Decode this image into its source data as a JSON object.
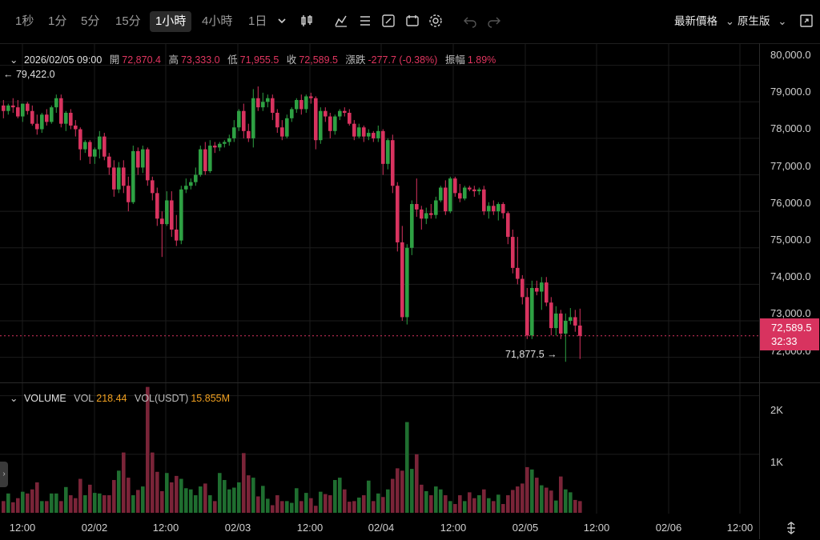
{
  "toolbar": {
    "timeframes": [
      "1秒",
      "1分",
      "5分",
      "15分",
      "1小時",
      "4小時",
      "1日"
    ],
    "active_timeframe": "1小時",
    "price_type": "最新價格",
    "view_mode": "原生版"
  },
  "legend": {
    "datetime": "2026/02/05 09:00",
    "open_label": "開",
    "open": "72,870.4",
    "high_label": "高",
    "high": "73,333.0",
    "low_label": "低",
    "low": "71,955.5",
    "close_label": "收",
    "close": "72,589.5",
    "change_label": "漲跌",
    "change": "-277.7 (-0.38%)",
    "amplitude_label": "振幅",
    "amplitude": "1.89%"
  },
  "annotations": {
    "high_marker": "← 79,422.0",
    "low_marker": "71,877.5 →"
  },
  "last_price": {
    "price": "72,589.5",
    "countdown": "32:33"
  },
  "volume_legend": {
    "title": "VOLUME",
    "vol_label": "VOL",
    "vol": "218.44",
    "vol_usdt_label": "VOL(USDT)",
    "vol_usdt": "15.855M"
  },
  "y_axis_labels": [
    "80,000.0",
    "79,000.0",
    "78,000.0",
    "77,000.0",
    "76,000.0",
    "75,000.0",
    "74,000.0",
    "73,000.0",
    "72,000.0"
  ],
  "volume_axis_labels": [
    "2K",
    "1K"
  ],
  "x_axis_labels": [
    "12:00",
    "02/02",
    "12:00",
    "02/03",
    "12:00",
    "02/04",
    "12:00",
    "02/05",
    "12:00",
    "02/06",
    "12:00"
  ],
  "colors": {
    "up": "#2ea043",
    "down": "#d8335f",
    "background": "#000000",
    "grid": "#1c1c1c"
  },
  "chart_data": {
    "type": "candlestick",
    "price_range": [
      71400,
      80300
    ],
    "volume_range": [
      0,
      2200
    ],
    "candles": [
      {
        "o": 78900,
        "h": 79050,
        "l": 78550,
        "c": 78750
      },
      {
        "o": 78750,
        "h": 78950,
        "l": 78650,
        "c": 78900
      },
      {
        "o": 78900,
        "h": 79100,
        "l": 78700,
        "c": 78850
      },
      {
        "o": 78850,
        "h": 79050,
        "l": 78550,
        "c": 78600
      },
      {
        "o": 78600,
        "h": 78950,
        "l": 78450,
        "c": 78950
      },
      {
        "o": 78950,
        "h": 79000,
        "l": 78650,
        "c": 78750
      },
      {
        "o": 78750,
        "h": 78900,
        "l": 78350,
        "c": 78400
      },
      {
        "o": 78400,
        "h": 78650,
        "l": 78100,
        "c": 78250
      },
      {
        "o": 78250,
        "h": 78700,
        "l": 78150,
        "c": 78650
      },
      {
        "o": 78650,
        "h": 78800,
        "l": 78350,
        "c": 78450
      },
      {
        "o": 78450,
        "h": 78900,
        "l": 78400,
        "c": 78850
      },
      {
        "o": 78850,
        "h": 79200,
        "l": 78700,
        "c": 79100
      },
      {
        "o": 79100,
        "h": 79200,
        "l": 78300,
        "c": 78400
      },
      {
        "o": 78400,
        "h": 78750,
        "l": 78200,
        "c": 78700
      },
      {
        "o": 78700,
        "h": 78800,
        "l": 78250,
        "c": 78350
      },
      {
        "o": 78350,
        "h": 78500,
        "l": 78050,
        "c": 78250
      },
      {
        "o": 78250,
        "h": 78300,
        "l": 77400,
        "c": 77700
      },
      {
        "o": 77700,
        "h": 77950,
        "l": 77600,
        "c": 77900
      },
      {
        "o": 77900,
        "h": 77950,
        "l": 77300,
        "c": 77500
      },
      {
        "o": 77500,
        "h": 77750,
        "l": 77300,
        "c": 77700
      },
      {
        "o": 77700,
        "h": 78200,
        "l": 77450,
        "c": 78050
      },
      {
        "o": 78050,
        "h": 78150,
        "l": 77400,
        "c": 77500
      },
      {
        "o": 77500,
        "h": 77600,
        "l": 77000,
        "c": 77200
      },
      {
        "o": 77200,
        "h": 77400,
        "l": 76400,
        "c": 76600
      },
      {
        "o": 76600,
        "h": 77350,
        "l": 76500,
        "c": 77200
      },
      {
        "o": 77200,
        "h": 77400,
        "l": 76500,
        "c": 76700
      },
      {
        "o": 76700,
        "h": 76950,
        "l": 76000,
        "c": 76250
      },
      {
        "o": 76250,
        "h": 77800,
        "l": 76200,
        "c": 77650
      },
      {
        "o": 77650,
        "h": 77750,
        "l": 77000,
        "c": 77200
      },
      {
        "o": 77200,
        "h": 77800,
        "l": 77050,
        "c": 77700
      },
      {
        "o": 77700,
        "h": 77750,
        "l": 76700,
        "c": 76850
      },
      {
        "o": 76850,
        "h": 76950,
        "l": 76300,
        "c": 76500
      },
      {
        "o": 76500,
        "h": 76650,
        "l": 75600,
        "c": 75800
      },
      {
        "o": 75800,
        "h": 76000,
        "l": 74750,
        "c": 75650
      },
      {
        "o": 75650,
        "h": 76550,
        "l": 75600,
        "c": 76300
      },
      {
        "o": 76300,
        "h": 76550,
        "l": 75300,
        "c": 75500
      },
      {
        "o": 75500,
        "h": 75900,
        "l": 75050,
        "c": 75200
      },
      {
        "o": 75200,
        "h": 76700,
        "l": 75100,
        "c": 76600
      },
      {
        "o": 76600,
        "h": 76900,
        "l": 76500,
        "c": 76700
      },
      {
        "o": 76700,
        "h": 76900,
        "l": 76600,
        "c": 76800
      },
      {
        "o": 76800,
        "h": 77200,
        "l": 76700,
        "c": 77000
      },
      {
        "o": 77000,
        "h": 77800,
        "l": 76950,
        "c": 77700
      },
      {
        "o": 77700,
        "h": 77900,
        "l": 77000,
        "c": 77100
      },
      {
        "o": 77100,
        "h": 77950,
        "l": 77050,
        "c": 77800
      },
      {
        "o": 77800,
        "h": 77900,
        "l": 77600,
        "c": 77750
      },
      {
        "o": 77750,
        "h": 77900,
        "l": 77650,
        "c": 77850
      },
      {
        "o": 77850,
        "h": 77950,
        "l": 77750,
        "c": 77900
      },
      {
        "o": 77900,
        "h": 78100,
        "l": 77800,
        "c": 78000
      },
      {
        "o": 78000,
        "h": 78500,
        "l": 77900,
        "c": 78300
      },
      {
        "o": 78300,
        "h": 78800,
        "l": 78200,
        "c": 78750
      },
      {
        "o": 78750,
        "h": 78950,
        "l": 78000,
        "c": 78200
      },
      {
        "o": 78200,
        "h": 78400,
        "l": 77900,
        "c": 78000
      },
      {
        "o": 78000,
        "h": 79350,
        "l": 77750,
        "c": 79100
      },
      {
        "o": 79100,
        "h": 79422,
        "l": 78750,
        "c": 78850
      },
      {
        "o": 78850,
        "h": 79250,
        "l": 78750,
        "c": 79000
      },
      {
        "o": 79000,
        "h": 79200,
        "l": 78850,
        "c": 79100
      },
      {
        "o": 79100,
        "h": 79200,
        "l": 78500,
        "c": 78700
      },
      {
        "o": 78700,
        "h": 78800,
        "l": 78150,
        "c": 78300
      },
      {
        "o": 78300,
        "h": 78500,
        "l": 77950,
        "c": 78050
      },
      {
        "o": 78050,
        "h": 78650,
        "l": 78000,
        "c": 78550
      },
      {
        "o": 78550,
        "h": 78850,
        "l": 78450,
        "c": 78800
      },
      {
        "o": 78800,
        "h": 79100,
        "l": 78700,
        "c": 79050
      },
      {
        "o": 79050,
        "h": 79200,
        "l": 78650,
        "c": 78800
      },
      {
        "o": 78800,
        "h": 79200,
        "l": 78700,
        "c": 79150
      },
      {
        "o": 79150,
        "h": 79250,
        "l": 78950,
        "c": 79100
      },
      {
        "o": 79100,
        "h": 79150,
        "l": 77700,
        "c": 77950
      },
      {
        "o": 77950,
        "h": 78850,
        "l": 77850,
        "c": 78750
      },
      {
        "o": 78750,
        "h": 78850,
        "l": 78450,
        "c": 78600
      },
      {
        "o": 78600,
        "h": 78700,
        "l": 78000,
        "c": 78200
      },
      {
        "o": 78200,
        "h": 78650,
        "l": 78100,
        "c": 78600
      },
      {
        "o": 78600,
        "h": 78800,
        "l": 78500,
        "c": 78750
      },
      {
        "o": 78750,
        "h": 78850,
        "l": 78600,
        "c": 78700
      },
      {
        "o": 78700,
        "h": 78800,
        "l": 78350,
        "c": 78400
      },
      {
        "o": 78400,
        "h": 78500,
        "l": 77950,
        "c": 78050
      },
      {
        "o": 78050,
        "h": 78400,
        "l": 78000,
        "c": 78300
      },
      {
        "o": 78300,
        "h": 78350,
        "l": 77900,
        "c": 78050
      },
      {
        "o": 78050,
        "h": 78250,
        "l": 77950,
        "c": 78150
      },
      {
        "o": 78150,
        "h": 78200,
        "l": 77900,
        "c": 78000
      },
      {
        "o": 78000,
        "h": 78350,
        "l": 77900,
        "c": 78200
      },
      {
        "o": 78200,
        "h": 78250,
        "l": 77000,
        "c": 77300
      },
      {
        "o": 77300,
        "h": 78000,
        "l": 77150,
        "c": 77950
      },
      {
        "o": 77950,
        "h": 78100,
        "l": 76500,
        "c": 76700
      },
      {
        "o": 76700,
        "h": 76800,
        "l": 74900,
        "c": 75150
      },
      {
        "o": 75150,
        "h": 75600,
        "l": 73000,
        "c": 73100
      },
      {
        "o": 73100,
        "h": 75100,
        "l": 72900,
        "c": 75000
      },
      {
        "o": 75000,
        "h": 76300,
        "l": 74800,
        "c": 76200
      },
      {
        "o": 76200,
        "h": 76900,
        "l": 75850,
        "c": 76050
      },
      {
        "o": 76050,
        "h": 76150,
        "l": 75500,
        "c": 75800
      },
      {
        "o": 75800,
        "h": 76100,
        "l": 75650,
        "c": 75950
      },
      {
        "o": 75950,
        "h": 76200,
        "l": 75800,
        "c": 75900
      },
      {
        "o": 75900,
        "h": 76400,
        "l": 75800,
        "c": 76300
      },
      {
        "o": 76300,
        "h": 76700,
        "l": 76250,
        "c": 76650
      },
      {
        "o": 76650,
        "h": 76850,
        "l": 75900,
        "c": 76000
      },
      {
        "o": 76000,
        "h": 76950,
        "l": 75950,
        "c": 76900
      },
      {
        "o": 76900,
        "h": 76950,
        "l": 76400,
        "c": 76500
      },
      {
        "o": 76500,
        "h": 76750,
        "l": 76250,
        "c": 76350
      },
      {
        "o": 76350,
        "h": 76700,
        "l": 76300,
        "c": 76650
      },
      {
        "o": 76650,
        "h": 76700,
        "l": 76550,
        "c": 76600
      },
      {
        "o": 76600,
        "h": 76700,
        "l": 76400,
        "c": 76550
      },
      {
        "o": 76550,
        "h": 76650,
        "l": 76450,
        "c": 76600
      },
      {
        "o": 76600,
        "h": 76700,
        "l": 75900,
        "c": 76000
      },
      {
        "o": 76000,
        "h": 76250,
        "l": 75800,
        "c": 76150
      },
      {
        "o": 76150,
        "h": 76300,
        "l": 75900,
        "c": 76000
      },
      {
        "o": 76000,
        "h": 76250,
        "l": 75750,
        "c": 76200
      },
      {
        "o": 76200,
        "h": 76250,
        "l": 75800,
        "c": 75950
      },
      {
        "o": 75950,
        "h": 76000,
        "l": 75100,
        "c": 75300
      },
      {
        "o": 75300,
        "h": 75500,
        "l": 74300,
        "c": 74450
      },
      {
        "o": 74450,
        "h": 75300,
        "l": 74000,
        "c": 74150
      },
      {
        "o": 74150,
        "h": 74250,
        "l": 73450,
        "c": 73650
      },
      {
        "o": 73650,
        "h": 73900,
        "l": 72500,
        "c": 72600
      },
      {
        "o": 72600,
        "h": 74100,
        "l": 72500,
        "c": 73900
      },
      {
        "o": 73900,
        "h": 74100,
        "l": 73700,
        "c": 73800
      },
      {
        "o": 73800,
        "h": 74200,
        "l": 73300,
        "c": 74050
      },
      {
        "o": 74050,
        "h": 74200,
        "l": 73400,
        "c": 73500
      },
      {
        "o": 73500,
        "h": 73650,
        "l": 72600,
        "c": 72800
      },
      {
        "o": 72800,
        "h": 73400,
        "l": 72600,
        "c": 73200
      },
      {
        "o": 73200,
        "h": 73300,
        "l": 72500,
        "c": 72650
      },
      {
        "o": 72650,
        "h": 73200,
        "l": 71877,
        "c": 73000
      },
      {
        "o": 73000,
        "h": 73350,
        "l": 72900,
        "c": 73100
      },
      {
        "o": 73100,
        "h": 73300,
        "l": 72700,
        "c": 72870
      },
      {
        "o": 72870,
        "h": 73333,
        "l": 71955,
        "c": 72589
      }
    ],
    "volumes": [
      200,
      330,
      180,
      250,
      360,
      330,
      400,
      520,
      200,
      200,
      330,
      330,
      200,
      440,
      300,
      250,
      580,
      300,
      480,
      340,
      330,
      300,
      300,
      560,
      720,
      1030,
      600,
      300,
      390,
      450,
      2150,
      1030,
      700,
      370,
      680,
      520,
      630,
      580,
      420,
      400,
      300,
      450,
      500,
      300,
      200,
      680,
      560,
      400,
      430,
      520,
      1020,
      640,
      600,
      280,
      460,
      240,
      130,
      300,
      200,
      200,
      170,
      420,
      200,
      340,
      250,
      120,
      360,
      320,
      300,
      560,
      600,
      400,
      190,
      200,
      260,
      300,
      550,
      200,
      330,
      270,
      400,
      580,
      760,
      720,
      1550,
      750,
      1000,
      480,
      370,
      300,
      450,
      400,
      300,
      200,
      150,
      300,
      200,
      350,
      250,
      300,
      400,
      250,
      200,
      310,
      150,
      300,
      390,
      450,
      500,
      780,
      740,
      600,
      470,
      430,
      380,
      210,
      620,
      400,
      350,
      220,
      200
    ]
  }
}
